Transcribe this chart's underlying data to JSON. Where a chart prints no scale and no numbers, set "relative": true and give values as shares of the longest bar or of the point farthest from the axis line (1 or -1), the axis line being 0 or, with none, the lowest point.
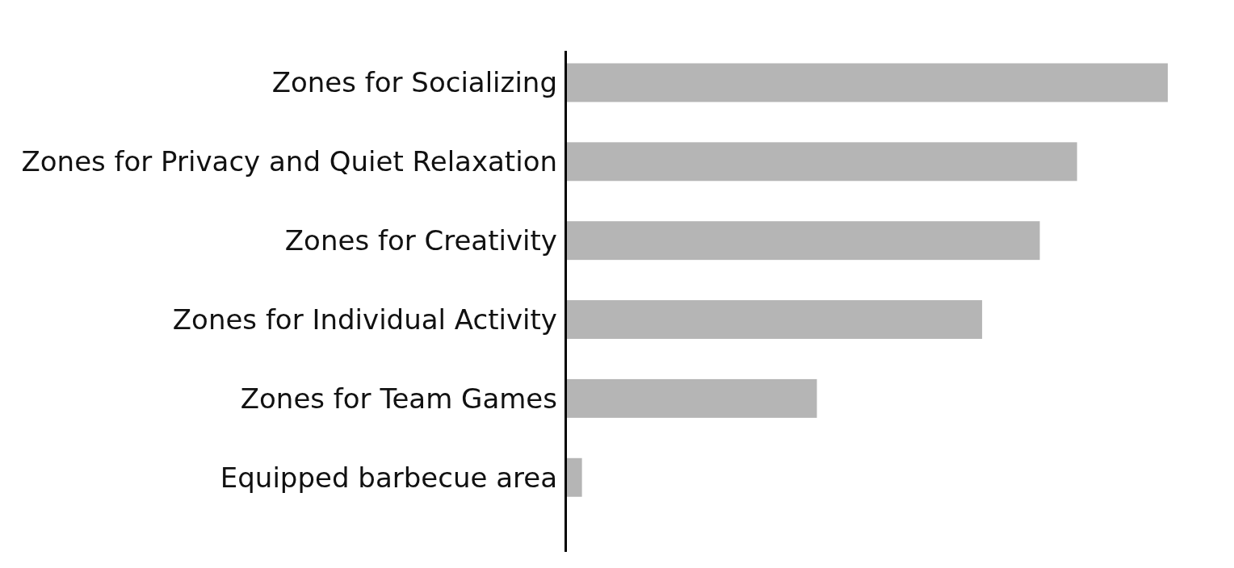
{
  "chart_data": {
    "type": "bar",
    "orientation": "horizontal",
    "relative": true,
    "categories": [
      "Zones for Socializing",
      "Zones for Privacy and Quiet Relaxation",
      "Zones for Creativity",
      "Zones for Individual Activity",
      "Zones for Team Games",
      "Equipped barbecue area"
    ],
    "values": [
      1,
      0.849,
      0.787,
      0.691,
      0.416,
      0.025
    ],
    "color": "#b5b5b5"
  }
}
